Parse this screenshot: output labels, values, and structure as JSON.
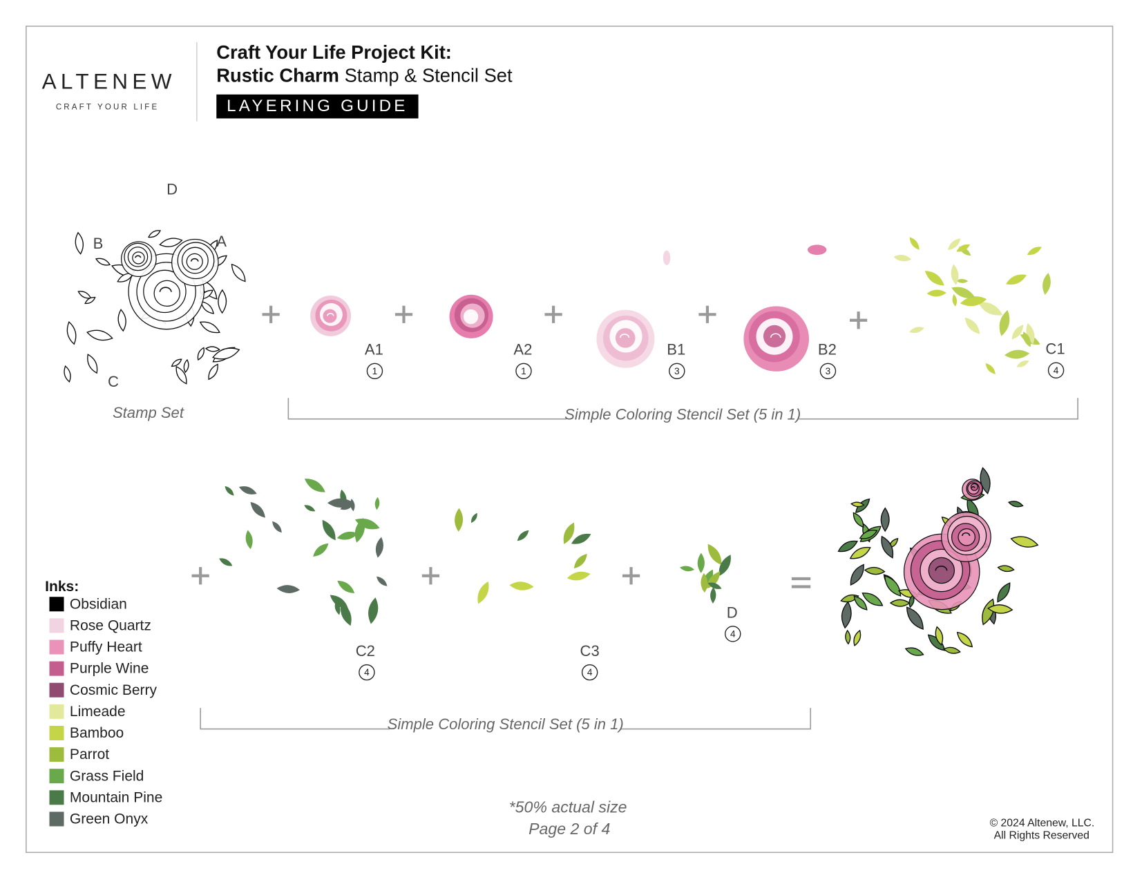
{
  "header": {
    "brand": "ALTENEW",
    "tagline": "CRAFT YOUR LIFE",
    "title_line1": "Craft Your Life Project Kit:",
    "title_bold": "Rustic Charm",
    "title_rest": "Stamp & Stencil Set",
    "badge": "LAYERING GUIDE"
  },
  "stamp": {
    "labels": [
      "D",
      "B",
      "A",
      "C"
    ],
    "caption": "Stamp Set"
  },
  "row1": {
    "layers": [
      {
        "label": "A1",
        "step": 1
      },
      {
        "label": "A2",
        "step": 1
      },
      {
        "label": "B1",
        "step": 3
      },
      {
        "label": "B2",
        "step": 3
      },
      {
        "label": "C1",
        "step": 4
      }
    ],
    "caption": "Simple Coloring Stencil Set (5 in 1)"
  },
  "row2": {
    "layers": [
      {
        "label": "C2",
        "step": 4
      },
      {
        "label": "C3",
        "step": 4
      },
      {
        "label": "D",
        "step": 4
      }
    ],
    "caption": "Simple Coloring Stencil Set (5 in 1)"
  },
  "inks": {
    "title": "Inks:",
    "items": [
      {
        "name": "Obsidian",
        "color": "#000000"
      },
      {
        "name": "Rose Quartz",
        "color": "#f1d4e1"
      },
      {
        "name": "Puffy Heart",
        "color": "#ea92b8"
      },
      {
        "name": "Purple Wine",
        "color": "#c45e8f"
      },
      {
        "name": "Cosmic Berry",
        "color": "#8f4b70"
      },
      {
        "name": "Limeade",
        "color": "#e2e89c"
      },
      {
        "name": "Bamboo",
        "color": "#c5d548"
      },
      {
        "name": "Parrot",
        "color": "#9dbc3d"
      },
      {
        "name": "Grass Field",
        "color": "#69a84b"
      },
      {
        "name": "Mountain Pine",
        "color": "#4b7a49"
      },
      {
        "name": "Green Onyx",
        "color": "#5e6b65"
      }
    ]
  },
  "footer": {
    "note": "*50% actual size",
    "page": "Page 2 of 4",
    "copyright": "© 2024 Altenew, LLC.",
    "rights": "All Rights Reserved"
  }
}
